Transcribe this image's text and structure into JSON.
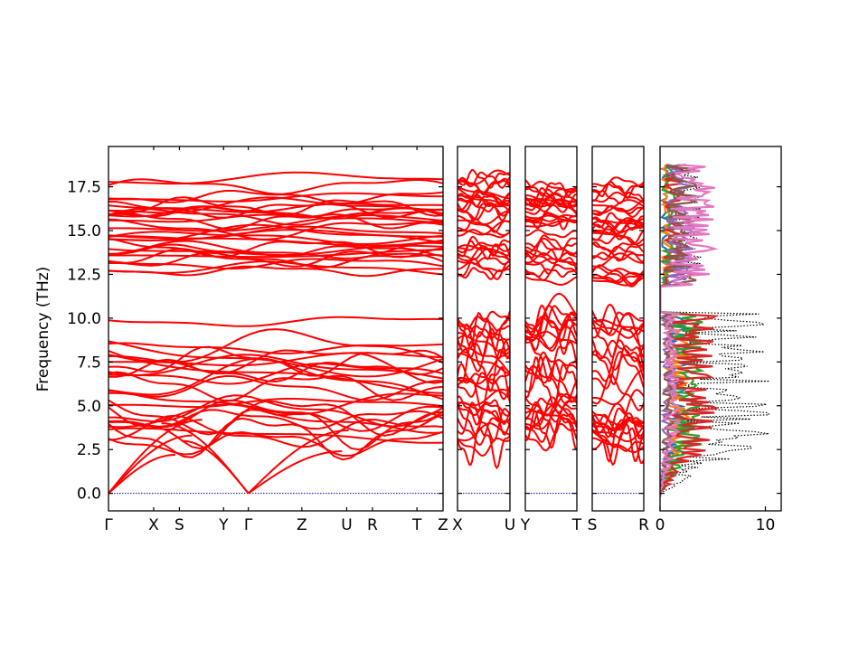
{
  "chart_data": {
    "type": "line",
    "ylabel": "Frequency (THz)",
    "ylim": [
      -1.0,
      19.8
    ],
    "yticks": [
      "0.0",
      "2.5",
      "5.0",
      "7.5",
      "10.0",
      "12.5",
      "15.0",
      "17.5"
    ],
    "ytick_values": [
      0.0,
      2.5,
      5.0,
      7.5,
      10.0,
      12.5,
      15.0,
      17.5
    ],
    "band_color": "#ff0000",
    "zero_line_color": "#0000cc",
    "panels": [
      {
        "labels": [
          "Γ",
          "X",
          "S",
          "Y",
          "Γ",
          "Z",
          "U",
          "R",
          "T",
          "Z"
        ],
        "label_pos": [
          0,
          0.135,
          0.212,
          0.344,
          0.418,
          0.578,
          0.712,
          0.789,
          0.922,
          1.0
        ]
      },
      {
        "labels": [
          "X",
          "U"
        ]
      },
      {
        "labels": [
          "Y",
          "T"
        ]
      },
      {
        "labels": [
          "S",
          "R"
        ]
      }
    ],
    "dos": {
      "xticks": [
        "0",
        "10"
      ],
      "xtick_values": [
        0,
        10
      ],
      "xlim": [
        0,
        11.5
      ],
      "total_color": "#000000",
      "series_colors": [
        "#1f77b4",
        "#ff7f0e",
        "#2ca02c",
        "#d62728",
        "#9467bd",
        "#8c564b",
        "#e377c2"
      ]
    }
  }
}
